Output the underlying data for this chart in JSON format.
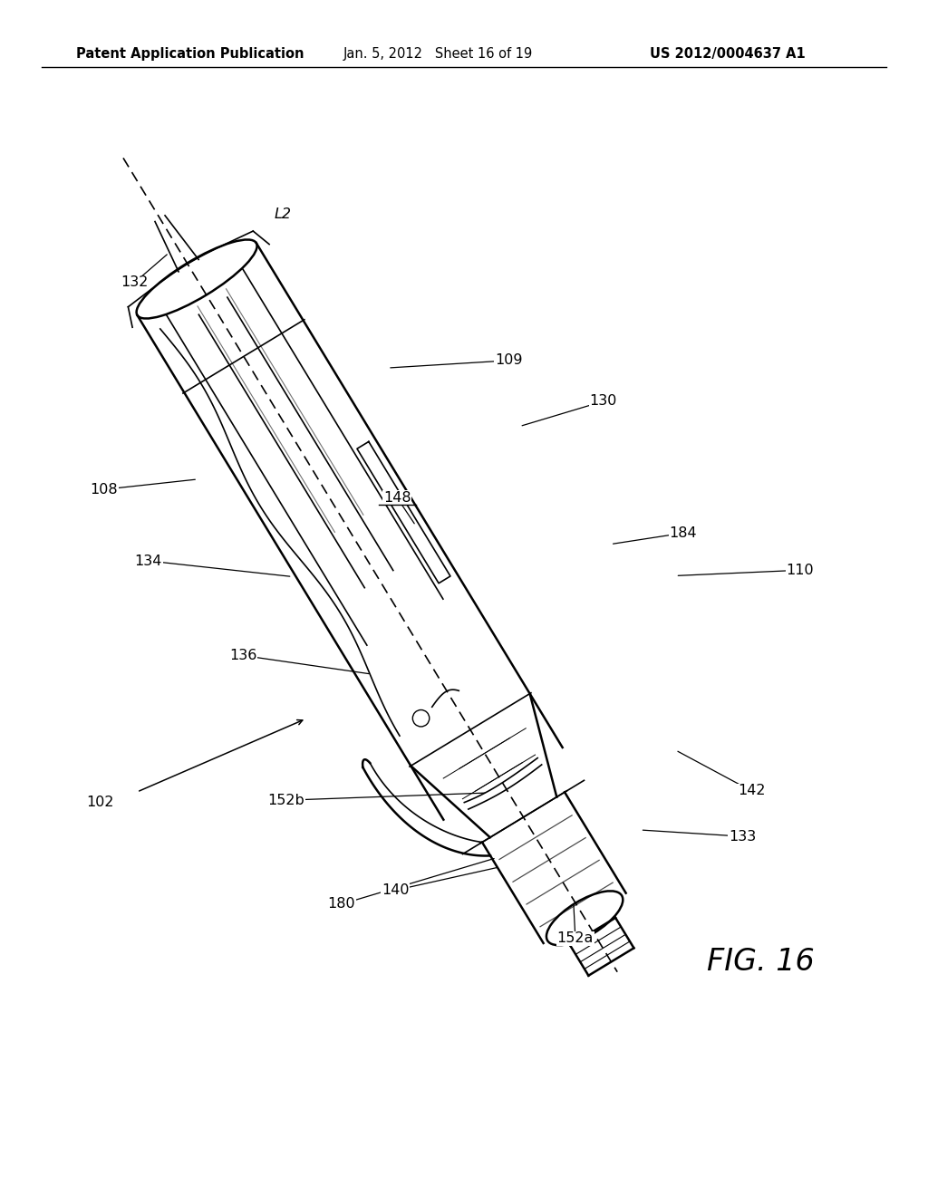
{
  "header_left": "Patent Application Publication",
  "header_center": "Jan. 5, 2012   Sheet 16 of 19",
  "header_right": "US 2012/0004637 A1",
  "figure_label": "FIG. 16",
  "background_color": "#ffffff",
  "line_color": "#000000"
}
